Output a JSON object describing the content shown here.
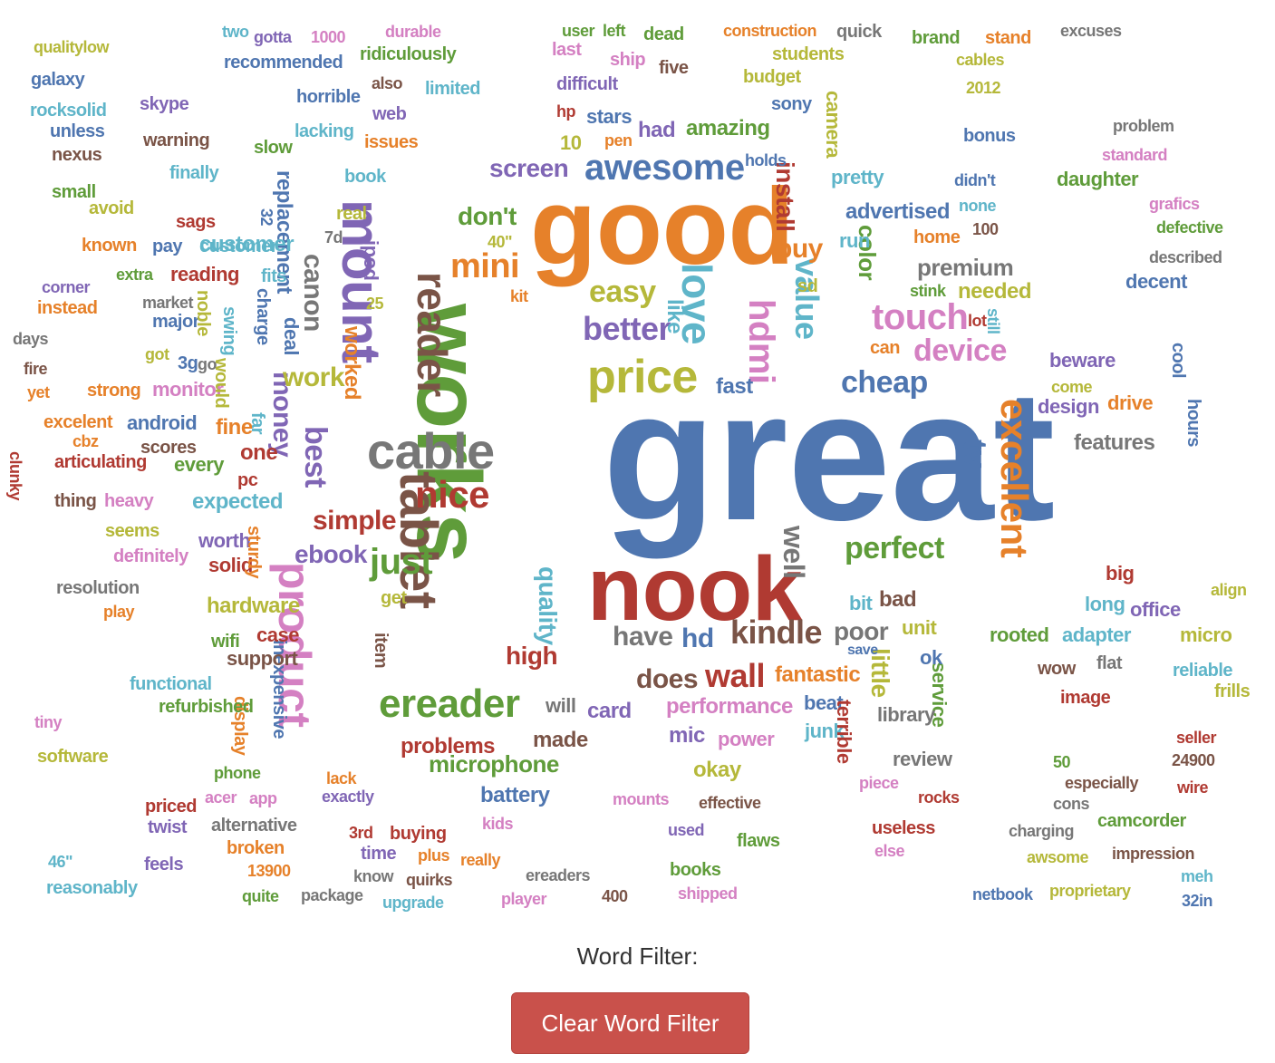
{
  "colors": {
    "blue": "#4f76b0",
    "orange": "#e6812a",
    "green": "#5f9c3a",
    "red": "#b03a32",
    "purple": "#8066b5",
    "brown": "#7a5447",
    "pink": "#d480c2",
    "gray": "#777777",
    "olive": "#b5b83a",
    "teal": "#5fb5c9"
  },
  "filter": {
    "label": "Word Filter:",
    "clear_button": "Clear Word Filter"
  },
  "words": [
    {
      "t": "great",
      "c": "blue"
    },
    {
      "t": "works",
      "c": "green"
    },
    {
      "t": "good",
      "c": "orange"
    },
    {
      "t": "nook",
      "c": "red"
    },
    {
      "t": "mount",
      "c": "purple"
    },
    {
      "t": "tablet",
      "c": "brown"
    },
    {
      "t": "cable",
      "c": "gray"
    },
    {
      "t": "product",
      "c": "pink"
    },
    {
      "t": "reader",
      "c": "brown"
    },
    {
      "t": "love",
      "c": "teal"
    },
    {
      "t": "awesome",
      "c": "blue"
    },
    {
      "t": "price",
      "c": "olive"
    },
    {
      "t": "nice",
      "c": "red"
    },
    {
      "t": "ereader",
      "c": "green"
    },
    {
      "t": "excellent",
      "c": "orange"
    },
    {
      "t": "kindle",
      "c": "brown"
    },
    {
      "t": "hdmi",
      "c": "pink"
    },
    {
      "t": "value",
      "c": "teal"
    },
    {
      "t": "touch",
      "c": "pink"
    },
    {
      "t": "mini",
      "c": "orange"
    },
    {
      "t": "better",
      "c": "purple"
    },
    {
      "t": "easy",
      "c": "olive"
    },
    {
      "t": "cheap",
      "c": "blue"
    },
    {
      "t": "device",
      "c": "pink"
    },
    {
      "t": "just",
      "c": "green"
    },
    {
      "t": "best",
      "c": "purple"
    },
    {
      "t": "canon",
      "c": "gray"
    },
    {
      "t": "tv",
      "c": "blue"
    },
    {
      "t": "perfect",
      "c": "green"
    },
    {
      "t": "wall",
      "c": "red"
    },
    {
      "t": "well",
      "c": "gray"
    },
    {
      "t": "money",
      "c": "purple"
    },
    {
      "t": "don't",
      "c": "green"
    },
    {
      "t": "install",
      "c": "red"
    },
    {
      "t": "buy",
      "c": "orange"
    },
    {
      "t": "simple",
      "c": "red"
    },
    {
      "t": "ebook",
      "c": "purple"
    },
    {
      "t": "quality",
      "c": "teal"
    },
    {
      "t": "does",
      "c": "brown"
    },
    {
      "t": "have",
      "c": "gray"
    },
    {
      "t": "high",
      "c": "red"
    },
    {
      "t": "hd",
      "c": "blue"
    },
    {
      "t": "poor",
      "c": "gray"
    },
    {
      "t": "little",
      "c": "olive"
    },
    {
      "t": "fantastic",
      "c": "orange"
    },
    {
      "t": "card",
      "c": "purple"
    },
    {
      "t": "performance",
      "c": "pink"
    },
    {
      "t": "premium",
      "c": "gray"
    },
    {
      "t": "screen",
      "c": "purple"
    },
    {
      "t": "color",
      "c": "green"
    },
    {
      "t": "replacement",
      "c": "blue"
    },
    {
      "t": "work",
      "c": "olive"
    },
    {
      "t": "worked",
      "c": "orange"
    },
    {
      "t": "customer",
      "c": "teal"
    },
    {
      "t": "ipod",
      "c": "purple"
    },
    {
      "t": "deal",
      "c": "blue"
    },
    {
      "t": "charge",
      "c": "blue"
    },
    {
      "t": "microphone",
      "c": "green"
    },
    {
      "t": "problems",
      "c": "red"
    },
    {
      "t": "battery",
      "c": "blue"
    },
    {
      "t": "fast",
      "c": "blue"
    },
    {
      "t": "like",
      "c": "teal"
    },
    {
      "t": "advertised",
      "c": "blue"
    },
    {
      "t": "amazing",
      "c": "green"
    },
    {
      "t": "had",
      "c": "purple"
    },
    {
      "t": "stars",
      "c": "blue"
    },
    {
      "t": "pretty",
      "c": "teal"
    },
    {
      "t": "run",
      "c": "teal"
    },
    {
      "t": "camera",
      "c": "olive"
    },
    {
      "t": "features",
      "c": "gray"
    },
    {
      "t": "design",
      "c": "purple"
    },
    {
      "t": "drive",
      "c": "orange"
    },
    {
      "t": "beware",
      "c": "purple"
    },
    {
      "t": "needed",
      "c": "olive"
    },
    {
      "t": "decent",
      "c": "blue"
    },
    {
      "t": "daughter",
      "c": "green"
    },
    {
      "t": "service",
      "c": "green"
    },
    {
      "t": "rooted",
      "c": "green"
    },
    {
      "t": "adapter",
      "c": "teal"
    },
    {
      "t": "micro",
      "c": "olive"
    },
    {
      "t": "office",
      "c": "purple"
    },
    {
      "t": "long",
      "c": "teal"
    },
    {
      "t": "big",
      "c": "red"
    },
    {
      "t": "reliable",
      "c": "teal"
    },
    {
      "t": "frills",
      "c": "olive"
    },
    {
      "t": "wow",
      "c": "brown"
    },
    {
      "t": "flat",
      "c": "gray"
    },
    {
      "t": "image",
      "c": "red"
    },
    {
      "t": "library",
      "c": "gray"
    },
    {
      "t": "beat",
      "c": "blue"
    },
    {
      "t": "junk",
      "c": "teal"
    },
    {
      "t": "review",
      "c": "gray"
    },
    {
      "t": "mic",
      "c": "purple"
    },
    {
      "t": "power",
      "c": "pink"
    },
    {
      "t": "okay",
      "c": "olive"
    },
    {
      "t": "made",
      "c": "brown"
    },
    {
      "t": "will",
      "c": "gray"
    },
    {
      "t": "bad",
      "c": "brown"
    },
    {
      "t": "unit",
      "c": "olive"
    },
    {
      "t": "save",
      "c": "blue"
    },
    {
      "t": "bit",
      "c": "teal"
    },
    {
      "t": "ok",
      "c": "blue"
    },
    {
      "t": "terrible",
      "c": "red"
    },
    {
      "t": "inexpensive",
      "c": "blue"
    },
    {
      "t": "display",
      "c": "orange"
    },
    {
      "t": "case",
      "c": "red"
    },
    {
      "t": "support",
      "c": "brown"
    },
    {
      "t": "hardware",
      "c": "olive"
    },
    {
      "t": "wifi",
      "c": "green"
    },
    {
      "t": "solid",
      "c": "red"
    },
    {
      "t": "worth",
      "c": "purple"
    },
    {
      "t": "sturdy",
      "c": "orange"
    },
    {
      "t": "get",
      "c": "olive"
    },
    {
      "t": "item",
      "c": "brown"
    },
    {
      "t": "one",
      "c": "red"
    },
    {
      "t": "pc",
      "c": "red"
    },
    {
      "t": "every",
      "c": "green"
    },
    {
      "t": "fine",
      "c": "orange"
    },
    {
      "t": "expected",
      "c": "teal"
    },
    {
      "t": "far",
      "c": "teal"
    },
    {
      "t": "android",
      "c": "blue"
    },
    {
      "t": "scores",
      "c": "brown"
    },
    {
      "t": "articulating",
      "c": "red"
    },
    {
      "t": "monitor",
      "c": "pink"
    },
    {
      "t": "strong",
      "c": "orange"
    },
    {
      "t": "excelent",
      "c": "orange"
    },
    {
      "t": "reading",
      "c": "red"
    },
    {
      "t": "pay",
      "c": "blue"
    },
    {
      "t": "major",
      "c": "blue"
    },
    {
      "t": "market",
      "c": "gray"
    },
    {
      "t": "noble",
      "c": "olive"
    },
    {
      "t": "swing",
      "c": "teal"
    },
    {
      "t": "fits",
      "c": "teal"
    },
    {
      "t": "instead",
      "c": "orange"
    },
    {
      "t": "corner",
      "c": "purple"
    },
    {
      "t": "known",
      "c": "orange"
    },
    {
      "t": "sags",
      "c": "red"
    },
    {
      "t": "customer",
      "c": "teal"
    },
    {
      "t": "avoid",
      "c": "olive"
    },
    {
      "t": "warning",
      "c": "brown"
    },
    {
      "t": "nexus",
      "c": "brown"
    },
    {
      "t": "unless",
      "c": "blue"
    },
    {
      "t": "rocksolid",
      "c": "teal"
    },
    {
      "t": "galaxy",
      "c": "blue"
    },
    {
      "t": "qualitylow",
      "c": "olive"
    },
    {
      "t": "skype",
      "c": "purple"
    },
    {
      "t": "recommended",
      "c": "blue"
    },
    {
      "t": "two",
      "c": "teal"
    },
    {
      "t": "gotta",
      "c": "purple"
    },
    {
      "t": "1000",
      "c": "pink"
    },
    {
      "t": "durable",
      "c": "pink"
    },
    {
      "t": "ridiculously",
      "c": "green"
    },
    {
      "t": "user",
      "c": "green"
    },
    {
      "t": "left",
      "c": "green"
    },
    {
      "t": "dead",
      "c": "green"
    },
    {
      "t": "construction",
      "c": "orange"
    },
    {
      "t": "quick",
      "c": "gray"
    },
    {
      "t": "brand",
      "c": "green"
    },
    {
      "t": "stand",
      "c": "orange"
    },
    {
      "t": "excuses",
      "c": "gray"
    },
    {
      "t": "students",
      "c": "olive"
    },
    {
      "t": "budget",
      "c": "olive"
    },
    {
      "t": "sony",
      "c": "blue"
    },
    {
      "t": "five",
      "c": "brown"
    },
    {
      "t": "ship",
      "c": "pink"
    },
    {
      "t": "difficult",
      "c": "purple"
    },
    {
      "t": "limited",
      "c": "teal"
    },
    {
      "t": "horrible",
      "c": "blue"
    },
    {
      "t": "also",
      "c": "brown"
    },
    {
      "t": "web",
      "c": "purple"
    },
    {
      "t": "issues",
      "c": "orange"
    },
    {
      "t": "book",
      "c": "teal"
    },
    {
      "t": "slow",
      "c": "green"
    },
    {
      "t": "lacking",
      "c": "teal"
    },
    {
      "t": "finally",
      "c": "teal"
    },
    {
      "t": "small",
      "c": "green"
    },
    {
      "t": "extra",
      "c": "green"
    },
    {
      "t": "days",
      "c": "gray"
    },
    {
      "t": "fire",
      "c": "brown"
    },
    {
      "t": "yet",
      "c": "orange"
    },
    {
      "t": "got",
      "c": "olive"
    },
    {
      "t": "3g",
      "c": "blue"
    },
    {
      "t": "go",
      "c": "gray"
    },
    {
      "t": "would",
      "c": "olive"
    },
    {
      "t": "clunky",
      "c": "red"
    },
    {
      "t": "cbz",
      "c": "orange"
    },
    {
      "t": "thing",
      "c": "brown"
    },
    {
      "t": "heavy",
      "c": "pink"
    },
    {
      "t": "seems",
      "c": "olive"
    },
    {
      "t": "definitely",
      "c": "pink"
    },
    {
      "t": "resolution",
      "c": "gray"
    },
    {
      "t": "play",
      "c": "orange"
    },
    {
      "t": "functional",
      "c": "teal"
    },
    {
      "t": "refurbished",
      "c": "green"
    },
    {
      "t": "tiny",
      "c": "pink"
    },
    {
      "t": "software",
      "c": "olive"
    },
    {
      "t": "phone",
      "c": "green"
    },
    {
      "t": "priced",
      "c": "red"
    },
    {
      "t": "acer",
      "c": "pink"
    },
    {
      "t": "app",
      "c": "pink"
    },
    {
      "t": "twist",
      "c": "purple"
    },
    {
      "t": "alternative",
      "c": "gray"
    },
    {
      "t": "broken",
      "c": "orange"
    },
    {
      "t": "13900",
      "c": "orange"
    },
    {
      "t": "quite",
      "c": "green"
    },
    {
      "t": "package",
      "c": "gray"
    },
    {
      "t": "feels",
      "c": "purple"
    },
    {
      "t": "46\"",
      "c": "teal"
    },
    {
      "t": "reasonably",
      "c": "teal"
    },
    {
      "t": "upgrade",
      "c": "teal"
    },
    {
      "t": "player",
      "c": "pink"
    },
    {
      "t": "quirks",
      "c": "brown"
    },
    {
      "t": "buying",
      "c": "red"
    },
    {
      "t": "3rd",
      "c": "red"
    },
    {
      "t": "time",
      "c": "purple"
    },
    {
      "t": "plus",
      "c": "orange"
    },
    {
      "t": "really",
      "c": "orange"
    },
    {
      "t": "kids",
      "c": "pink"
    },
    {
      "t": "know",
      "c": "gray"
    },
    {
      "t": "ereaders",
      "c": "gray"
    },
    {
      "t": "400",
      "c": "brown"
    },
    {
      "t": "books",
      "c": "green"
    },
    {
      "t": "shipped",
      "c": "pink"
    },
    {
      "t": "used",
      "c": "purple"
    },
    {
      "t": "flaws",
      "c": "green"
    },
    {
      "t": "effective",
      "c": "brown"
    },
    {
      "t": "mounts",
      "c": "pink"
    },
    {
      "t": "exactly",
      "c": "purple"
    },
    {
      "t": "lack",
      "c": "orange"
    },
    {
      "t": "useless",
      "c": "red"
    },
    {
      "t": "else",
      "c": "pink"
    },
    {
      "t": "piece",
      "c": "pink"
    },
    {
      "t": "rocks",
      "c": "red"
    },
    {
      "t": "especially",
      "c": "brown"
    },
    {
      "t": "cons",
      "c": "gray"
    },
    {
      "t": "charging",
      "c": "gray"
    },
    {
      "t": "camcorder",
      "c": "green"
    },
    {
      "t": "awsome",
      "c": "olive"
    },
    {
      "t": "impression",
      "c": "brown"
    },
    {
      "t": "netbook",
      "c": "blue"
    },
    {
      "t": "proprietary",
      "c": "olive"
    },
    {
      "t": "meh",
      "c": "teal"
    },
    {
      "t": "32in",
      "c": "blue"
    },
    {
      "t": "wire",
      "c": "red"
    },
    {
      "t": "24900",
      "c": "brown"
    },
    {
      "t": "seller",
      "c": "red"
    },
    {
      "t": "50",
      "c": "green"
    },
    {
      "t": "align",
      "c": "olive"
    },
    {
      "t": "hours",
      "c": "blue"
    },
    {
      "t": "cool",
      "c": "blue"
    },
    {
      "t": "come",
      "c": "olive"
    },
    {
      "t": "still",
      "c": "teal"
    },
    {
      "t": "lot",
      "c": "red"
    },
    {
      "t": "stink",
      "c": "green"
    },
    {
      "t": "can",
      "c": "orange"
    },
    {
      "t": "home",
      "c": "orange"
    },
    {
      "t": "100",
      "c": "brown"
    },
    {
      "t": "none",
      "c": "teal"
    },
    {
      "t": "didn't",
      "c": "blue"
    },
    {
      "t": "bonus",
      "c": "blue"
    },
    {
      "t": "2012",
      "c": "olive"
    },
    {
      "t": "cables",
      "c": "olive"
    },
    {
      "t": "problem",
      "c": "gray"
    },
    {
      "t": "standard",
      "c": "pink"
    },
    {
      "t": "grafics",
      "c": "pink"
    },
    {
      "t": "defective",
      "c": "green"
    },
    {
      "t": "described",
      "c": "gray"
    },
    {
      "t": "10",
      "c": "olive"
    },
    {
      "t": "pen",
      "c": "orange"
    },
    {
      "t": "hp",
      "c": "red"
    },
    {
      "t": "last",
      "c": "pink"
    },
    {
      "t": "holds",
      "c": "blue"
    },
    {
      "t": "sd",
      "c": "olive"
    },
    {
      "t": "25",
      "c": "olive"
    },
    {
      "t": "kit",
      "c": "orange"
    },
    {
      "t": "40\"",
      "c": "olive"
    },
    {
      "t": "real",
      "c": "olive"
    },
    {
      "t": "32",
      "c": "blue"
    },
    {
      "t": "7d",
      "c": "gray"
    }
  ]
}
